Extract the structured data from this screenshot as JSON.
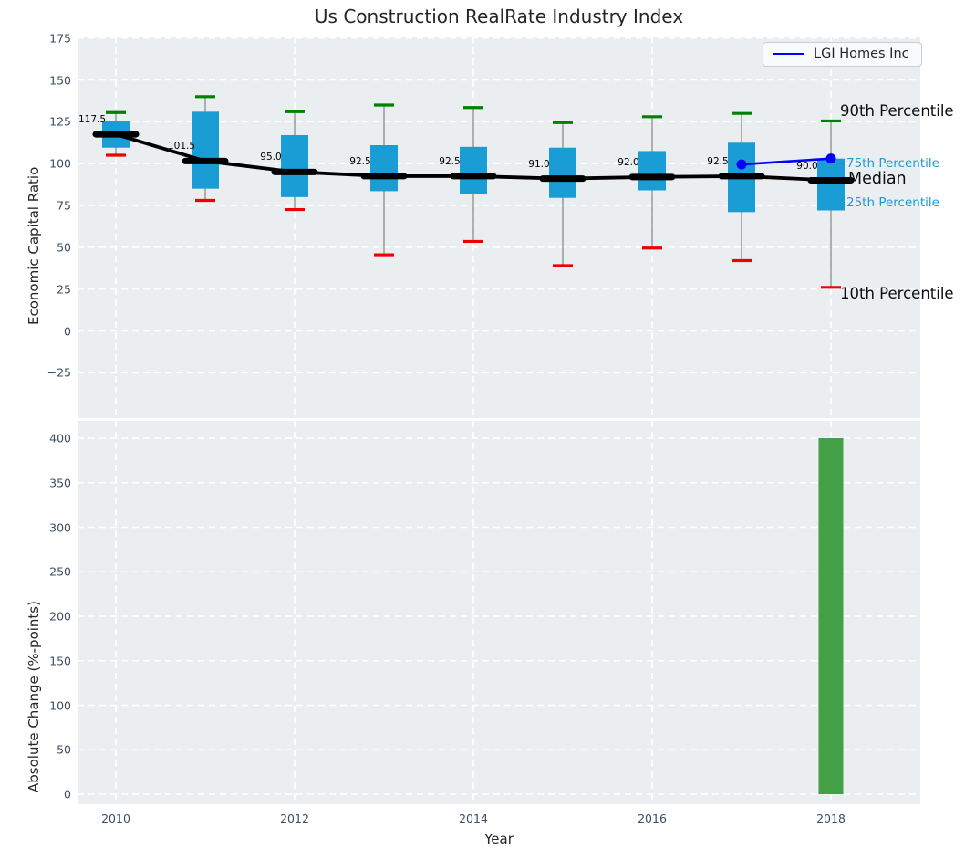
{
  "title": "Us Construction RealRate Industry Index",
  "legend": {
    "label": "LGI Homes Inc",
    "line_color": "#0000ff"
  },
  "annotations": {
    "p90": "90th Percentile",
    "p75": "75th Percentile",
    "median": "Median",
    "p25": "25th Percentile",
    "p10": "10th Percentile"
  },
  "colors": {
    "box_fill": "#1a9cd4",
    "p90_cap": "#008000",
    "p10_cap": "#ee0000",
    "median_line": "#000000",
    "whisker": "#8a8a8a",
    "company_line": "#0000ff",
    "bar_fill": "#43a046",
    "axes_bg": "#eaeef1",
    "grid": "#ffffff",
    "tick_text": "#3d4e63"
  },
  "chart_data": [
    {
      "type": "boxplot",
      "title": "Us Construction RealRate Industry Index",
      "ylabel": "Economic Capital Ratio",
      "ylim": [
        -52,
        176
      ],
      "yticks": [
        {
          "label": "175",
          "value": 175
        },
        {
          "label": "150",
          "value": 150
        },
        {
          "label": "125",
          "value": 125
        },
        {
          "label": "100",
          "value": 100
        },
        {
          "label": "75",
          "value": 75
        },
        {
          "label": "50",
          "value": 50
        },
        {
          "label": "25",
          "value": 25
        },
        {
          "label": "0",
          "value": 0
        },
        {
          "label": "−25",
          "value": -25
        }
      ],
      "grid_years": [
        2010,
        2012,
        2014,
        2016,
        2018
      ],
      "boxes": [
        {
          "year": 2010,
          "p10": 105.0,
          "p25": 109.5,
          "median": 117.5,
          "p75": 125.5,
          "p90": 130.5
        },
        {
          "year": 2011,
          "p10": 78.0,
          "p25": 85.0,
          "median": 101.5,
          "p75": 131.0,
          "p90": 140.0
        },
        {
          "year": 2012,
          "p10": 72.5,
          "p25": 80.0,
          "median": 95.0,
          "p75": 117.0,
          "p90": 131.0
        },
        {
          "year": 2013,
          "p10": 45.5,
          "p25": 83.5,
          "median": 92.5,
          "p75": 111.0,
          "p90": 135.0
        },
        {
          "year": 2014,
          "p10": 53.5,
          "p25": 82.0,
          "median": 92.5,
          "p75": 110.0,
          "p90": 133.5
        },
        {
          "year": 2015,
          "p10": 39.0,
          "p25": 79.5,
          "median": 91.0,
          "p75": 109.5,
          "p90": 124.5
        },
        {
          "year": 2016,
          "p10": 49.5,
          "p25": 84.0,
          "median": 92.0,
          "p75": 107.5,
          "p90": 128.0
        },
        {
          "year": 2017,
          "p10": 42.0,
          "p25": 71.0,
          "median": 92.5,
          "p75": 112.5,
          "p90": 130.0
        },
        {
          "year": 2018,
          "p10": 26.0,
          "p25": 72.0,
          "median": 90.0,
          "p75": 103.0,
          "p90": 125.5
        }
      ],
      "median_labels": [
        "117.5",
        "101.5",
        "95.0",
        "92.5",
        "92.5",
        "91.0",
        "92.0",
        "92.5",
        "90.0"
      ],
      "company_series": {
        "name": "LGI Homes Inc",
        "points": [
          {
            "year": 2017,
            "value": 99.5
          },
          {
            "year": 2018,
            "value": 103.0
          }
        ]
      },
      "legend_position": "upper right"
    },
    {
      "type": "bar",
      "ylabel": "Absolute Change (%-points)",
      "xlabel": "Year",
      "ylim": [
        -11,
        419
      ],
      "yticks": [
        {
          "label": "400",
          "value": 400
        },
        {
          "label": "350",
          "value": 350
        },
        {
          "label": "300",
          "value": 300
        },
        {
          "label": "250",
          "value": 250
        },
        {
          "label": "200",
          "value": 200
        },
        {
          "label": "150",
          "value": 150
        },
        {
          "label": "100",
          "value": 100
        },
        {
          "label": "50",
          "value": 50
        },
        {
          "label": "0",
          "value": 0
        }
      ],
      "xticks": [
        {
          "label": "2010",
          "year": 2010
        },
        {
          "label": "2012",
          "year": 2012
        },
        {
          "label": "2014",
          "year": 2014
        },
        {
          "label": "2016",
          "year": 2016
        },
        {
          "label": "2018",
          "year": 2018
        }
      ],
      "grid_years": [
        2010,
        2012,
        2014,
        2016,
        2018
      ],
      "bars": [
        {
          "year": 2018,
          "value": 400
        }
      ]
    }
  ]
}
